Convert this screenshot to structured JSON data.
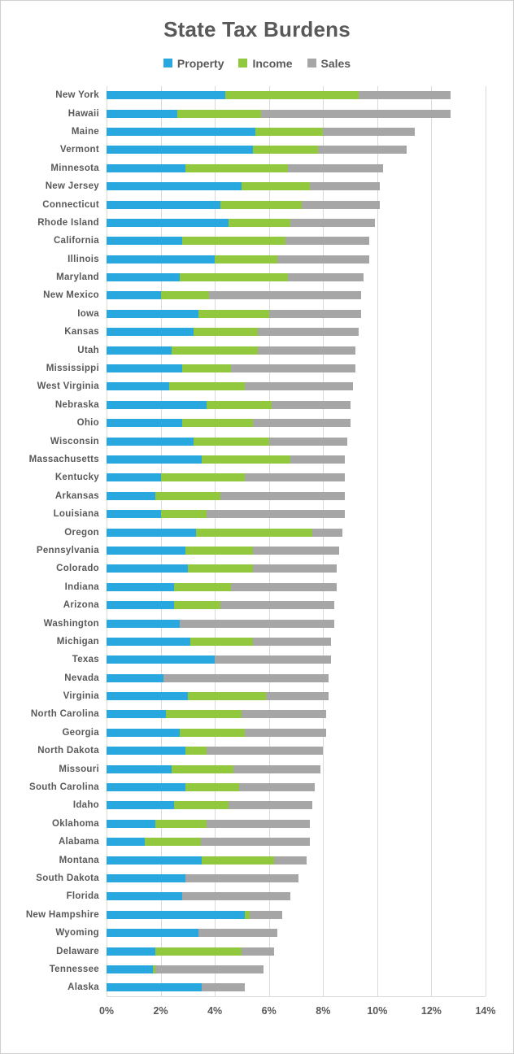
{
  "title": "State Tax Burdens",
  "colors": {
    "label_text": "#595959",
    "gridline": "#D9D9D9",
    "background": "#FFFFFF",
    "frame_border": "#CFCFCF"
  },
  "chart_data": {
    "type": "bar",
    "orientation": "horizontal",
    "stacked": true,
    "title": "State Tax Burdens",
    "legend_position": "top",
    "grid": "vertical",
    "xlim": [
      0,
      14
    ],
    "x_tick_step": 2,
    "x_ticks": [
      "0%",
      "2%",
      "4%",
      "6%",
      "8%",
      "10%",
      "12%",
      "14%"
    ],
    "categories": [
      "New York",
      "Hawaii",
      "Maine",
      "Vermont",
      "Minnesota",
      "New Jersey",
      "Connecticut",
      "Rhode Island",
      "California",
      "Illinois",
      "Maryland",
      "New Mexico",
      "Iowa",
      "Kansas",
      "Utah",
      "Mississippi",
      "West Virginia",
      "Nebraska",
      "Ohio",
      "Wisconsin",
      "Massachusetts",
      "Kentucky",
      "Arkansas",
      "Louisiana",
      "Oregon",
      "Pennsylvania",
      "Colorado",
      "Indiana",
      "Arizona",
      "Washington",
      "Michigan",
      "Texas",
      "Nevada",
      "Virginia",
      "North Carolina",
      "Georgia",
      "North Dakota",
      "Missouri",
      "South Carolina",
      "Idaho",
      "Oklahoma",
      "Alabama",
      "Montana",
      "South Dakota",
      "Florida",
      "New Hampshire",
      "Wyoming",
      "Delaware",
      "Tennessee",
      "Alaska"
    ],
    "series": [
      {
        "name": "Property",
        "color": "#29A7DF",
        "values": [
          4.4,
          2.6,
          5.5,
          5.4,
          2.9,
          5.0,
          4.2,
          4.5,
          2.8,
          4.0,
          2.7,
          2.0,
          3.4,
          3.2,
          2.4,
          2.8,
          2.3,
          3.7,
          2.8,
          3.2,
          3.5,
          2.0,
          1.8,
          2.0,
          3.3,
          2.9,
          3.0,
          2.5,
          2.5,
          2.7,
          3.1,
          4.0,
          2.1,
          3.0,
          2.2,
          2.7,
          2.9,
          2.4,
          2.9,
          2.5,
          1.8,
          1.4,
          3.5,
          2.9,
          2.8,
          5.1,
          3.4,
          1.8,
          1.7,
          3.5
        ]
      },
      {
        "name": "Income",
        "color": "#92C83E",
        "values": [
          4.9,
          3.1,
          2.5,
          2.4,
          3.8,
          2.5,
          3.0,
          2.3,
          3.8,
          2.3,
          4.0,
          1.8,
          2.6,
          2.4,
          3.2,
          1.8,
          2.8,
          2.4,
          2.6,
          2.8,
          3.3,
          3.1,
          2.4,
          1.7,
          4.3,
          2.5,
          2.4,
          2.1,
          1.7,
          0,
          2.3,
          0,
          0,
          2.9,
          2.8,
          2.4,
          0.8,
          2.3,
          2.0,
          2.0,
          1.9,
          2.1,
          2.7,
          0,
          0,
          0.2,
          0,
          3.2,
          0.1,
          0
        ]
      },
      {
        "name": "Sales",
        "color": "#A6A6A6",
        "values": [
          3.4,
          7.0,
          3.4,
          3.3,
          3.5,
          2.6,
          2.9,
          3.1,
          3.1,
          3.4,
          2.8,
          5.6,
          3.4,
          3.7,
          3.6,
          4.6,
          4.0,
          2.9,
          3.6,
          2.9,
          2.0,
          3.7,
          4.6,
          5.1,
          1.1,
          3.2,
          3.1,
          3.9,
          4.2,
          5.7,
          2.9,
          4.3,
          6.1,
          2.3,
          3.1,
          3.0,
          4.3,
          3.2,
          2.8,
          3.1,
          3.8,
          4.0,
          1.2,
          4.2,
          4.0,
          1.2,
          2.9,
          1.2,
          4.0,
          1.6
        ]
      }
    ]
  }
}
